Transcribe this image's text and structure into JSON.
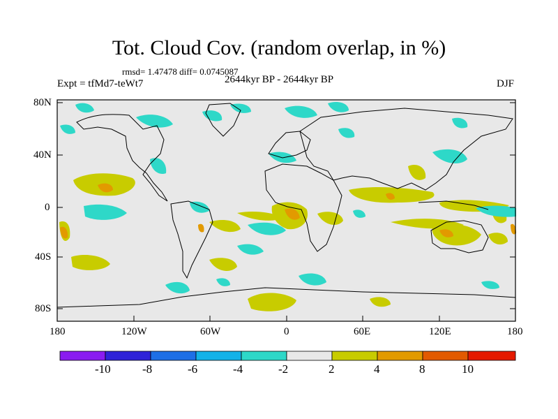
{
  "title": "Tot. Cloud Cov. (random overlap, in %)",
  "stats": "rmsd= 1.47478 diff= 0.0745087",
  "expt": "Expt = tfMd7-teWt7",
  "period": "2644kyr BP - 2644kyr BP",
  "season": "DJF",
  "lat_labels": [
    "80N",
    "40N",
    "0",
    "40S",
    "80S"
  ],
  "lon_labels": [
    "180",
    "120W",
    "60W",
    "0",
    "60E",
    "120E",
    "180"
  ],
  "colorbar": {
    "tick_labels": [
      "-10",
      "-8",
      "-6",
      "-4",
      "-2",
      "2",
      "4",
      "8",
      "10"
    ],
    "colors": [
      "#8a1cf0",
      "#2f23d8",
      "#1e6fe6",
      "#13b2e8",
      "#2ed8c8",
      "#e8e8e8",
      "#c8cc00",
      "#e29a00",
      "#e25a00",
      "#e51a00"
    ]
  },
  "map_colors": {
    "background": "#e8e8e8",
    "cyan": "#2ed8c8",
    "olive": "#c8cc00",
    "orange": "#e29a00"
  }
}
